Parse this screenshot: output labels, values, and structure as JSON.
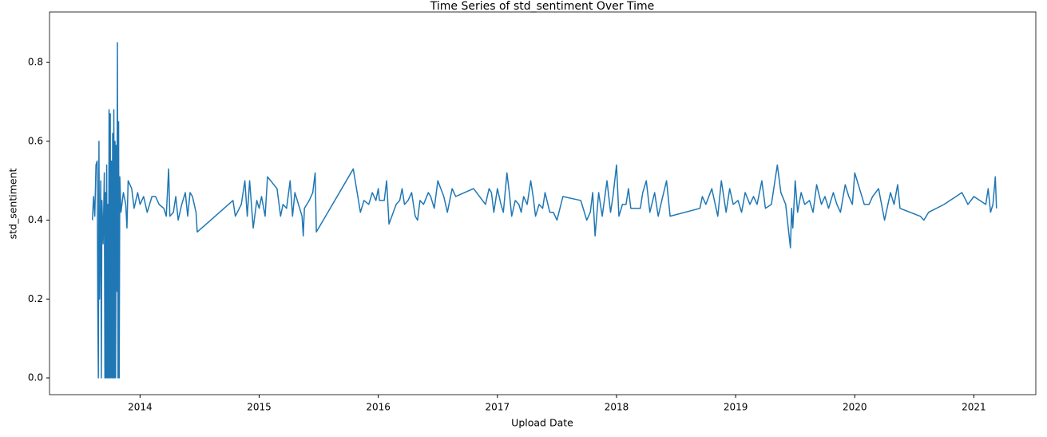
{
  "chart_data": {
    "type": "line",
    "title": "Time Series of std_sentiment Over Time",
    "xlabel": "Upload Date",
    "ylabel": "std_sentiment",
    "xlim": [
      2013.24,
      2021.52
    ],
    "ylim": [
      -0.0425,
      0.928
    ],
    "xticks": [
      2014,
      2015,
      2016,
      2017,
      2018,
      2019,
      2020,
      2021
    ],
    "yticks": [
      {
        "value": 0,
        "label": "0.0"
      },
      0.2,
      0.4,
      0.6,
      0.8
    ],
    "grid": false,
    "x": [
      2013.6,
      2013.61,
      2013.62,
      2013.63,
      2013.64,
      2013.645,
      2013.65,
      2013.655,
      2013.66,
      2013.67,
      2013.675,
      2013.68,
      2013.69,
      2013.7,
      2013.705,
      2013.71,
      2013.715,
      2013.72,
      2013.725,
      2013.73,
      2013.735,
      2013.74,
      2013.745,
      2013.75,
      2013.755,
      2013.76,
      2013.765,
      2013.77,
      2013.775,
      2013.78,
      2013.785,
      2013.79,
      2013.795,
      2013.8,
      2013.805,
      2013.81,
      2013.815,
      2013.82,
      2013.825,
      2013.83,
      2013.84,
      2013.86,
      2013.88,
      2013.89,
      2013.9,
      2013.93,
      2013.95,
      2013.98,
      2014.0,
      2014.03,
      2014.06,
      2014.1,
      2014.13,
      2014.16,
      2014.2,
      2014.22,
      2014.24,
      2014.25,
      2014.28,
      2014.3,
      2014.32,
      2014.35,
      2014.38,
      2014.4,
      2014.42,
      2014.44,
      2014.47,
      2014.48,
      2014.78,
      2014.8,
      2014.85,
      2014.88,
      2014.9,
      2014.92,
      2014.95,
      2014.98,
      2015.0,
      2015.02,
      2015.05,
      2015.07,
      2015.15,
      2015.18,
      2015.2,
      2015.23,
      2015.26,
      2015.28,
      2015.3,
      2015.33,
      2015.36,
      2015.37,
      2015.38,
      2015.42,
      2015.45,
      2015.47,
      2015.48,
      2015.79,
      2015.85,
      2015.88,
      2015.92,
      2015.95,
      2015.98,
      2016.0,
      2016.01,
      2016.05,
      2016.07,
      2016.09,
      2016.15,
      2016.18,
      2016.2,
      2016.22,
      2016.25,
      2016.28,
      2016.31,
      2016.33,
      2016.35,
      2016.38,
      2016.42,
      2016.44,
      2016.47,
      2016.5,
      2016.55,
      2016.58,
      2016.62,
      2016.65,
      2016.8,
      2016.9,
      2016.93,
      2016.95,
      2016.97,
      2017.0,
      2017.03,
      2017.05,
      2017.08,
      2017.1,
      2017.12,
      2017.15,
      2017.18,
      2017.2,
      2017.22,
      2017.25,
      2017.28,
      2017.3,
      2017.32,
      2017.35,
      2017.38,
      2017.4,
      2017.44,
      2017.47,
      2017.5,
      2017.55,
      2017.7,
      2017.75,
      2017.78,
      2017.8,
      2017.82,
      2017.85,
      2017.88,
      2017.92,
      2017.95,
      2017.97,
      2018.0,
      2018.02,
      2018.05,
      2018.08,
      2018.1,
      2018.12,
      2018.2,
      2018.22,
      2018.25,
      2018.28,
      2018.32,
      2018.35,
      2018.38,
      2018.42,
      2018.45,
      2018.7,
      2018.72,
      2018.75,
      2018.8,
      2018.85,
      2018.88,
      2018.92,
      2018.95,
      2018.98,
      2019.02,
      2019.05,
      2019.08,
      2019.12,
      2019.15,
      2019.18,
      2019.22,
      2019.25,
      2019.3,
      2019.35,
      2019.38,
      2019.42,
      2019.46,
      2019.47,
      2019.48,
      2019.5,
      2019.52,
      2019.55,
      2019.58,
      2019.62,
      2019.65,
      2019.68,
      2019.72,
      2019.75,
      2019.78,
      2019.82,
      2019.85,
      2019.88,
      2019.92,
      2019.95,
      2019.98,
      2020.0,
      2020.05,
      2020.08,
      2020.12,
      2020.15,
      2020.2,
      2020.25,
      2020.3,
      2020.33,
      2020.36,
      2020.38,
      2020.55,
      2020.58,
      2020.62,
      2020.75,
      2020.8,
      2020.85,
      2020.9,
      2020.95,
      2021.0,
      2021.1,
      2021.12,
      2021.14,
      2021.16,
      2021.18,
      2021.19
    ],
    "series": [
      {
        "name": "std_sentiment",
        "color": "#1f77b4",
        "values": [
          0.4,
          0.46,
          0.41,
          0.54,
          0.55,
          0.19,
          0.0,
          0.6,
          0.2,
          0.5,
          0.0,
          0.45,
          0.34,
          0.52,
          0.0,
          0.47,
          0.0,
          0.54,
          0.0,
          0.44,
          0.0,
          0.68,
          0.0,
          0.67,
          0.0,
          0.55,
          0.0,
          0.62,
          0.0,
          0.68,
          0.0,
          0.6,
          0.0,
          0.59,
          0.22,
          0.85,
          0.0,
          0.65,
          0.0,
          0.51,
          0.42,
          0.47,
          0.44,
          0.38,
          0.5,
          0.48,
          0.43,
          0.47,
          0.44,
          0.46,
          0.42,
          0.46,
          0.46,
          0.44,
          0.43,
          0.41,
          0.53,
          0.41,
          0.42,
          0.46,
          0.4,
          0.44,
          0.47,
          0.41,
          0.47,
          0.46,
          0.42,
          0.37,
          0.45,
          0.41,
          0.44,
          0.5,
          0.41,
          0.5,
          0.38,
          0.45,
          0.43,
          0.46,
          0.41,
          0.51,
          0.48,
          0.41,
          0.44,
          0.43,
          0.5,
          0.41,
          0.47,
          0.44,
          0.41,
          0.36,
          0.43,
          0.45,
          0.47,
          0.52,
          0.37,
          0.53,
          0.42,
          0.45,
          0.44,
          0.47,
          0.45,
          0.48,
          0.45,
          0.45,
          0.5,
          0.39,
          0.44,
          0.45,
          0.48,
          0.44,
          0.45,
          0.47,
          0.41,
          0.4,
          0.45,
          0.44,
          0.47,
          0.46,
          0.43,
          0.5,
          0.46,
          0.42,
          0.48,
          0.46,
          0.48,
          0.44,
          0.48,
          0.47,
          0.42,
          0.48,
          0.44,
          0.42,
          0.52,
          0.47,
          0.41,
          0.45,
          0.44,
          0.42,
          0.46,
          0.44,
          0.5,
          0.46,
          0.41,
          0.44,
          0.43,
          0.47,
          0.42,
          0.42,
          0.4,
          0.46,
          0.45,
          0.4,
          0.42,
          0.47,
          0.36,
          0.47,
          0.41,
          0.5,
          0.42,
          0.46,
          0.54,
          0.41,
          0.44,
          0.44,
          0.48,
          0.43,
          0.43,
          0.47,
          0.5,
          0.42,
          0.47,
          0.41,
          0.45,
          0.5,
          0.41,
          0.43,
          0.46,
          0.44,
          0.48,
          0.41,
          0.5,
          0.42,
          0.48,
          0.44,
          0.45,
          0.42,
          0.47,
          0.44,
          0.46,
          0.44,
          0.5,
          0.43,
          0.44,
          0.54,
          0.47,
          0.44,
          0.33,
          0.43,
          0.38,
          0.5,
          0.42,
          0.47,
          0.44,
          0.45,
          0.42,
          0.49,
          0.44,
          0.46,
          0.43,
          0.47,
          0.44,
          0.42,
          0.49,
          0.46,
          0.44,
          0.52,
          0.47,
          0.44,
          0.44,
          0.46,
          0.48,
          0.4,
          0.47,
          0.44,
          0.49,
          0.43,
          0.41,
          0.4,
          0.42,
          0.44,
          0.45,
          0.46,
          0.47,
          0.44,
          0.46,
          0.44,
          0.48,
          0.42,
          0.44,
          0.51,
          0.43
        ]
      }
    ]
  }
}
